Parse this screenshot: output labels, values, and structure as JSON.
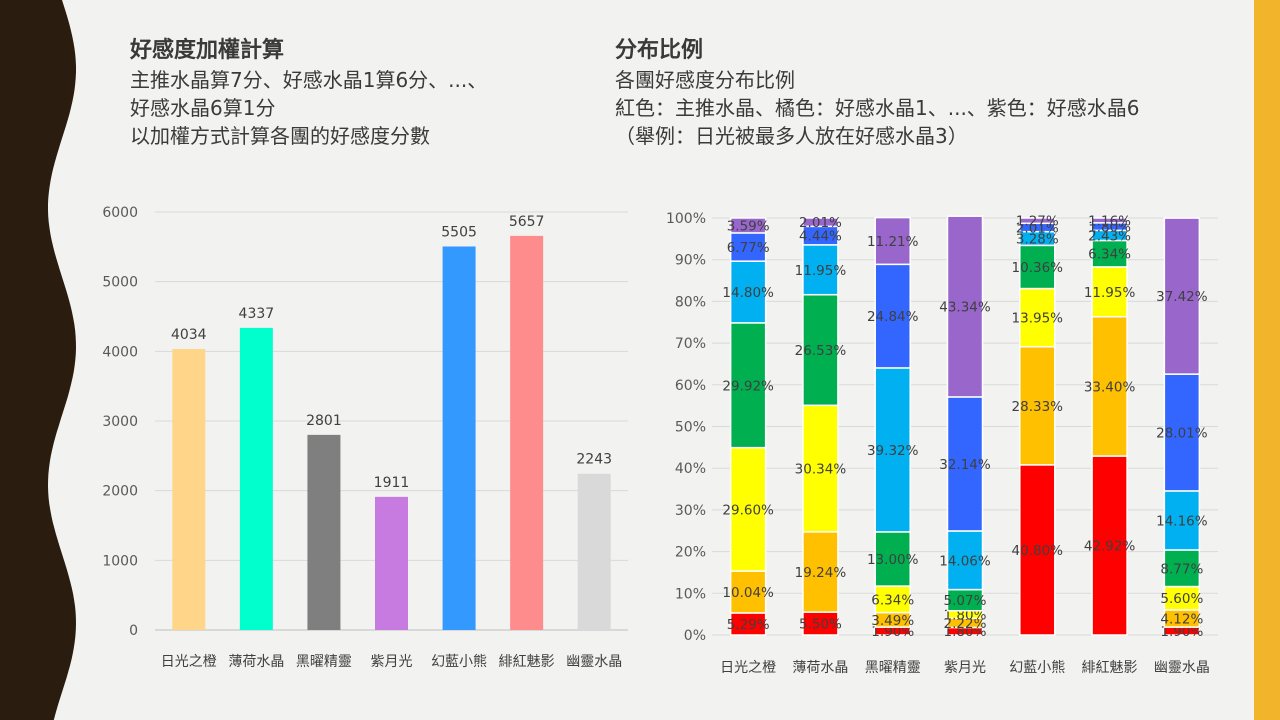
{
  "colors": {
    "left_band": "#2a1d10",
    "right_band": "#f2b42a"
  },
  "left_heading": {
    "title": "好感度加權計算",
    "lines": [
      "主推水晶算7分、好感水晶1算6分、...、",
      "好感水晶6算1分",
      "以加權方式計算各團的好感度分數"
    ]
  },
  "right_heading": {
    "title": "分布比例",
    "lines": [
      "各團好感度分布比例",
      "紅色：主推水晶、橘色：好感水晶1、...、紫色：好感水晶6",
      "（舉例：日光被最多人放在好感水晶3）"
    ]
  },
  "chart_data": [
    {
      "type": "bar",
      "title": "",
      "xlabel": "",
      "ylabel": "",
      "categories": [
        "日光之橙",
        "薄荷水晶",
        "黑曜精靈",
        "紫月光",
        "幻藍小熊",
        "緋紅魅影",
        "幽靈水晶"
      ],
      "values": [
        4034,
        4337,
        2801,
        1911,
        5505,
        5657,
        2243
      ],
      "colors": [
        "#ffd58a",
        "#00ffcc",
        "#7f7f7f",
        "#c77ae0",
        "#3399ff",
        "#ff8c8c",
        "#d9d9d9"
      ],
      "ylim": [
        0,
        6000
      ],
      "yticks": [
        0,
        1000,
        2000,
        3000,
        4000,
        5000,
        6000
      ],
      "grid": true,
      "data_labels": true
    },
    {
      "type": "bar",
      "stacked": true,
      "title": "",
      "categories": [
        "日光之橙",
        "薄荷水晶",
        "黑曜精靈",
        "紫月光",
        "幻藍小熊",
        "緋紅魅影",
        "幽靈水晶"
      ],
      "ylim": [
        0,
        100
      ],
      "yticks": [
        "0%",
        "10%",
        "20%",
        "30%",
        "40%",
        "50%",
        "60%",
        "70%",
        "80%",
        "90%",
        "100%"
      ],
      "grid": true,
      "series": [
        {
          "color": "#ff0000",
          "values": [
            5.29,
            5.5,
            1.9,
            1.8,
            40.8,
            42.92,
            1.9
          ],
          "labels": [
            "5.29%",
            "5.50%",
            "1.90%",
            "1.80%",
            "40.80%",
            "42.92%",
            "1.90%"
          ]
        },
        {
          "color": "#ffc000",
          "values": [
            10.04,
            19.24,
            3.49,
            2.22,
            28.33,
            33.4,
            4.12
          ],
          "labels": [
            "10.04%",
            "19.24%",
            "3.49%",
            "2.22%",
            "28.33%",
            "33.40%",
            "4.12%"
          ]
        },
        {
          "color": "#ffff00",
          "values": [
            29.6,
            30.34,
            6.34,
            1.8,
            13.95,
            11.95,
            5.6
          ],
          "labels": [
            "29.60%",
            "30.34%",
            "6.34%",
            "1.80%",
            "13.95%",
            "11.95%",
            "5.60%"
          ]
        },
        {
          "color": "#00b050",
          "values": [
            29.92,
            26.53,
            13.0,
            5.07,
            10.36,
            6.34,
            8.77
          ],
          "labels": [
            "29.92%",
            "26.53%",
            "13.00%",
            "5.07%",
            "10.36%",
            "6.34%",
            "8.77%"
          ]
        },
        {
          "color": "#00b0f0",
          "values": [
            14.8,
            11.95,
            39.32,
            14.06,
            3.28,
            2.43,
            14.16
          ],
          "labels": [
            "14.80%",
            "11.95%",
            "39.32%",
            "14.06%",
            "3.28%",
            "2.43%",
            "14.16%"
          ]
        },
        {
          "color": "#3366ff",
          "values": [
            6.77,
            4.44,
            24.84,
            32.14,
            2.01,
            1.8,
            28.01
          ],
          "labels": [
            "6.77%",
            "4.44%",
            "24.84%",
            "32.14%",
            "2.01%",
            "1.80%",
            "28.01%"
          ]
        },
        {
          "color": "#9966cc",
          "values": [
            3.59,
            2.01,
            11.21,
            43.34,
            1.27,
            1.16,
            37.42
          ],
          "labels": [
            "3.59%",
            "2.01%",
            "11.21%",
            "43.34%",
            "1.27%",
            "1.16%",
            "37.42%"
          ]
        }
      ]
    }
  ]
}
